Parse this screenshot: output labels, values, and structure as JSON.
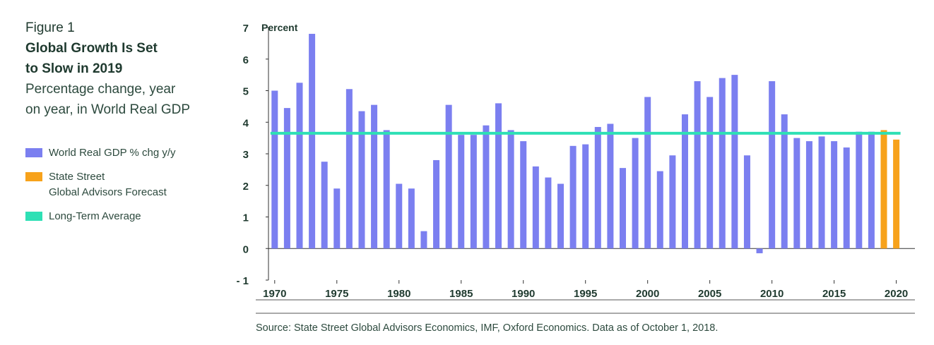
{
  "figure": {
    "label": "Figure 1",
    "title_line1": "Global Growth Is Set",
    "title_line2": "to Slow in 2019",
    "subtitle_line1": "Percentage change, year",
    "subtitle_line2": "on year, in World Real GDP"
  },
  "legend": {
    "series": "World Real GDP % chg y/y",
    "forecast_line1": "State Street",
    "forecast_line2": "Global Advisors Forecast",
    "average": "Long-Term Average"
  },
  "source": "Source: State Street Global Advisors Economics, IMF, Oxford Economics. Data as of October 1, 2018.",
  "colors": {
    "actual": "#7b7ff0",
    "forecast": "#f7a21b",
    "average": "#2ee0b5",
    "axis": "#333333"
  },
  "chart_data": {
    "type": "bar",
    "ylabel": "Percent",
    "ylim": [
      -1,
      7
    ],
    "yticks": [
      -1,
      0,
      1,
      2,
      3,
      4,
      5,
      6,
      7
    ],
    "ytick_labels": [
      "- 1",
      "0",
      "1",
      "2",
      "3",
      "4",
      "5",
      "6",
      "7"
    ],
    "xlim": [
      1969.5,
      2021.5
    ],
    "xticks": [
      1970,
      1975,
      1980,
      1985,
      1990,
      1995,
      2000,
      2005,
      2010,
      2015,
      2020
    ],
    "grid": false,
    "legend_position": "left",
    "series": [
      {
        "name": "World Real GDP % chg y/y",
        "x": [
          1970,
          1971,
          1972,
          1973,
          1974,
          1975,
          1976,
          1977,
          1978,
          1979,
          1980,
          1981,
          1982,
          1983,
          1984,
          1985,
          1986,
          1987,
          1988,
          1989,
          1990,
          1991,
          1992,
          1993,
          1994,
          1995,
          1996,
          1997,
          1998,
          1999,
          2000,
          2001,
          2002,
          2003,
          2004,
          2005,
          2006,
          2007,
          2008,
          2009,
          2010,
          2011,
          2012,
          2013,
          2014,
          2015,
          2016,
          2017,
          2018
        ],
        "values": [
          5.0,
          4.45,
          5.25,
          6.8,
          2.75,
          1.9,
          5.05,
          4.35,
          4.55,
          3.75,
          2.05,
          1.9,
          0.55,
          2.8,
          4.55,
          3.6,
          3.6,
          3.9,
          4.6,
          3.75,
          3.4,
          2.6,
          2.25,
          2.05,
          3.25,
          3.3,
          3.85,
          3.95,
          2.55,
          3.5,
          4.8,
          2.45,
          2.95,
          4.25,
          5.3,
          4.8,
          5.4,
          5.5,
          2.95,
          -0.15,
          5.3,
          4.25,
          3.5,
          3.4,
          3.55,
          3.4,
          3.2,
          3.7,
          3.7
        ]
      },
      {
        "name": "State Street Global Advisors Forecast",
        "x": [
          2019,
          2020
        ],
        "values": [
          3.75,
          3.45
        ]
      }
    ],
    "reference_lines": [
      {
        "name": "Long-Term Average",
        "y": 3.65,
        "x_range": [
          1970,
          2020
        ]
      }
    ]
  }
}
